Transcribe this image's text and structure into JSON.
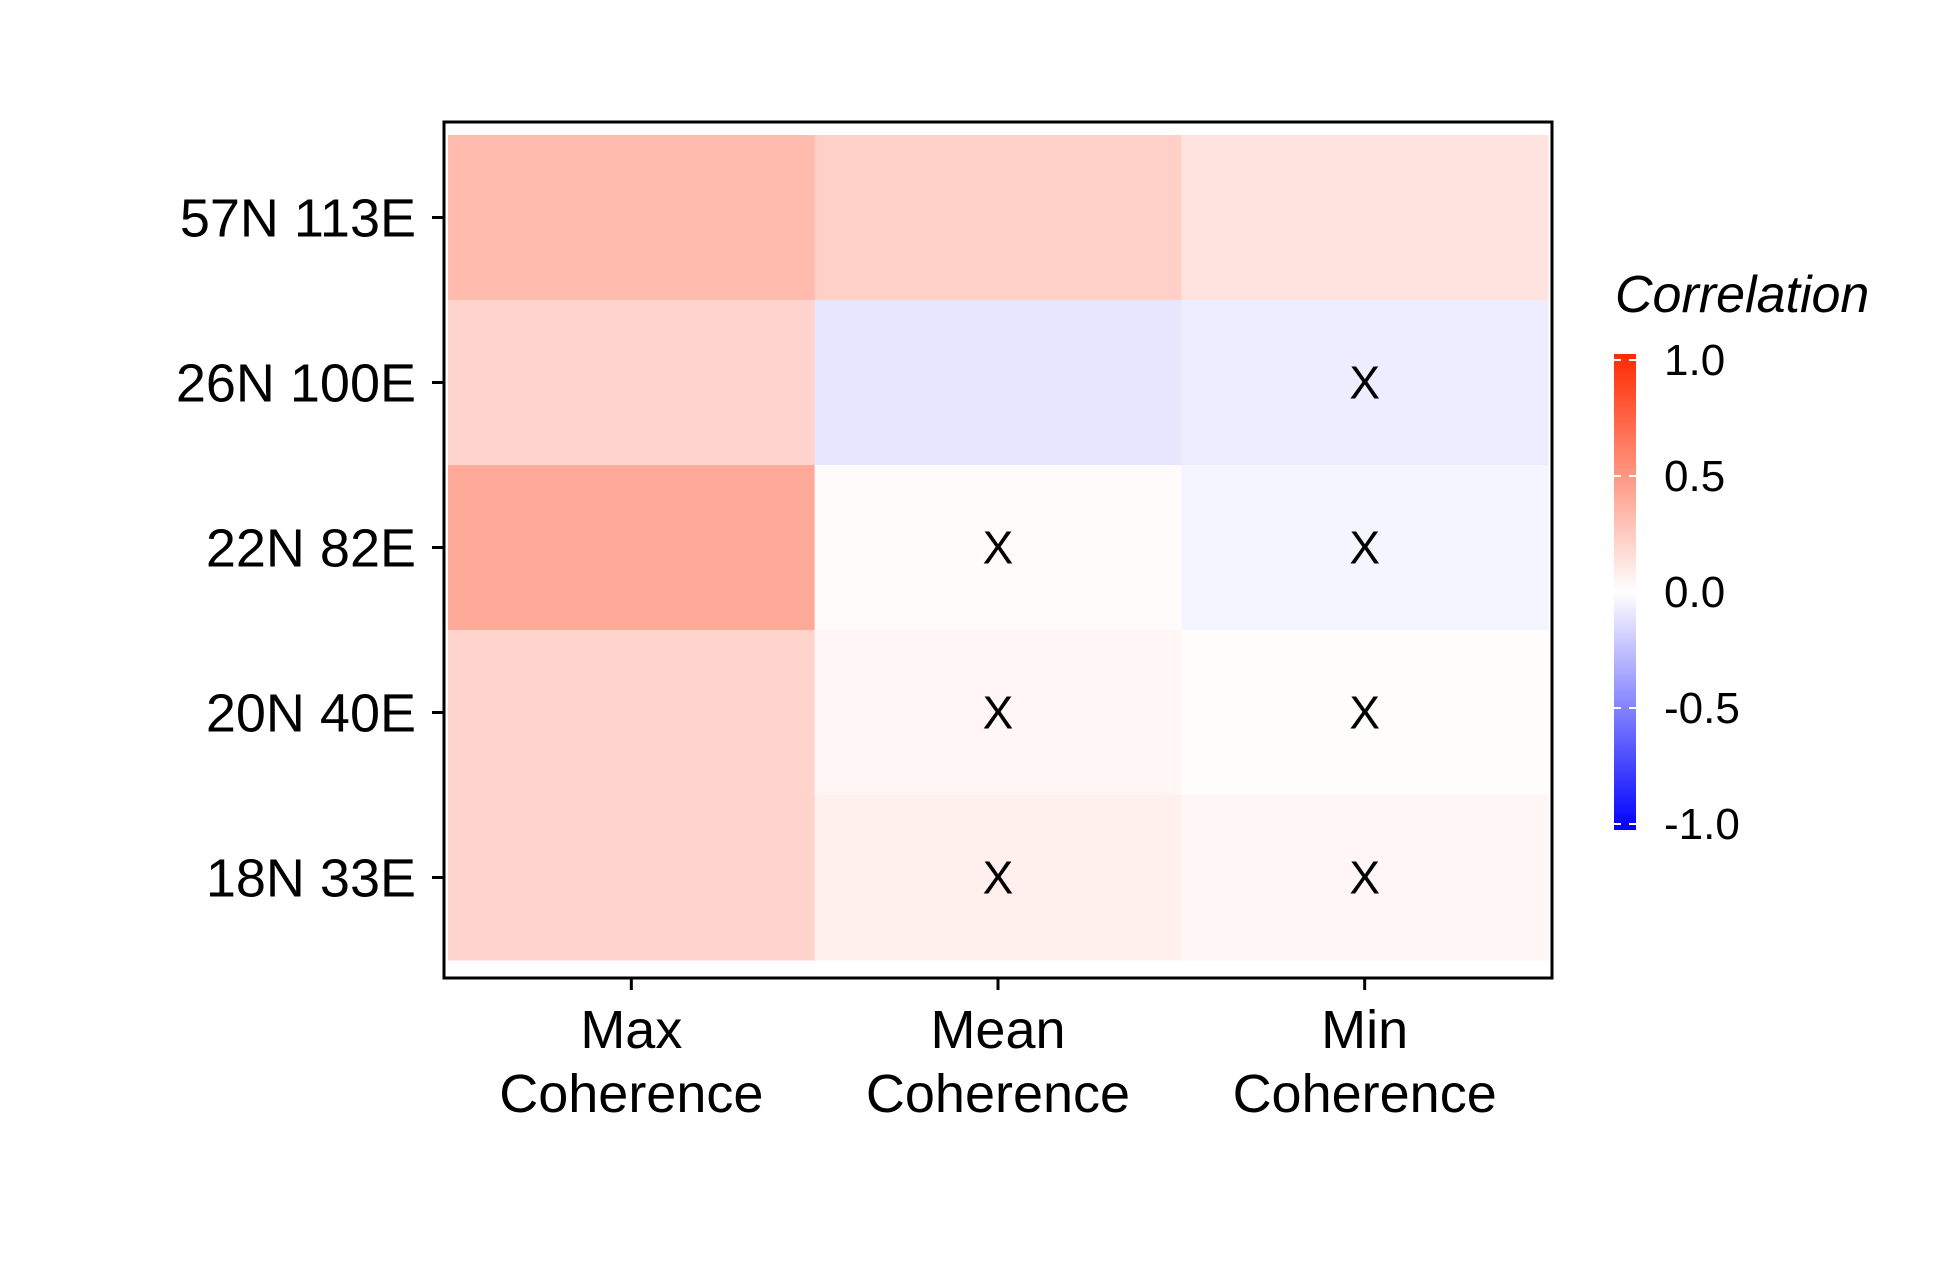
{
  "chart_data": {
    "type": "heatmap",
    "x_categories": [
      "Max\nCoherence",
      "Mean\nCoherence",
      "Min\nCoherence"
    ],
    "y_categories": [
      "57N 113E",
      "26N 100E",
      "22N 82E",
      "20N 40E",
      "18N 33E"
    ],
    "values": [
      [
        0.32,
        0.22,
        0.13
      ],
      [
        0.2,
        -0.1,
        -0.07
      ],
      [
        0.4,
        0.02,
        -0.04
      ],
      [
        0.2,
        0.04,
        0.01
      ],
      [
        0.2,
        0.07,
        0.04
      ]
    ],
    "not_significant": [
      [
        false,
        false,
        false
      ],
      [
        false,
        false,
        true
      ],
      [
        false,
        true,
        true
      ],
      [
        false,
        true,
        true
      ],
      [
        false,
        true,
        true
      ]
    ],
    "not_significant_marker": "X",
    "legend": {
      "title": "Correlation",
      "min": -1.0,
      "max": 1.0,
      "breaks": [
        "1.0",
        "0.5",
        "0.0",
        "-0.5",
        "-1.0"
      ],
      "low_color": "#0000FF",
      "mid_color": "#FFFFFF",
      "high_color": "#FF2A00",
      "placement": "right"
    },
    "title": "",
    "xlabel": "",
    "ylabel": ""
  }
}
